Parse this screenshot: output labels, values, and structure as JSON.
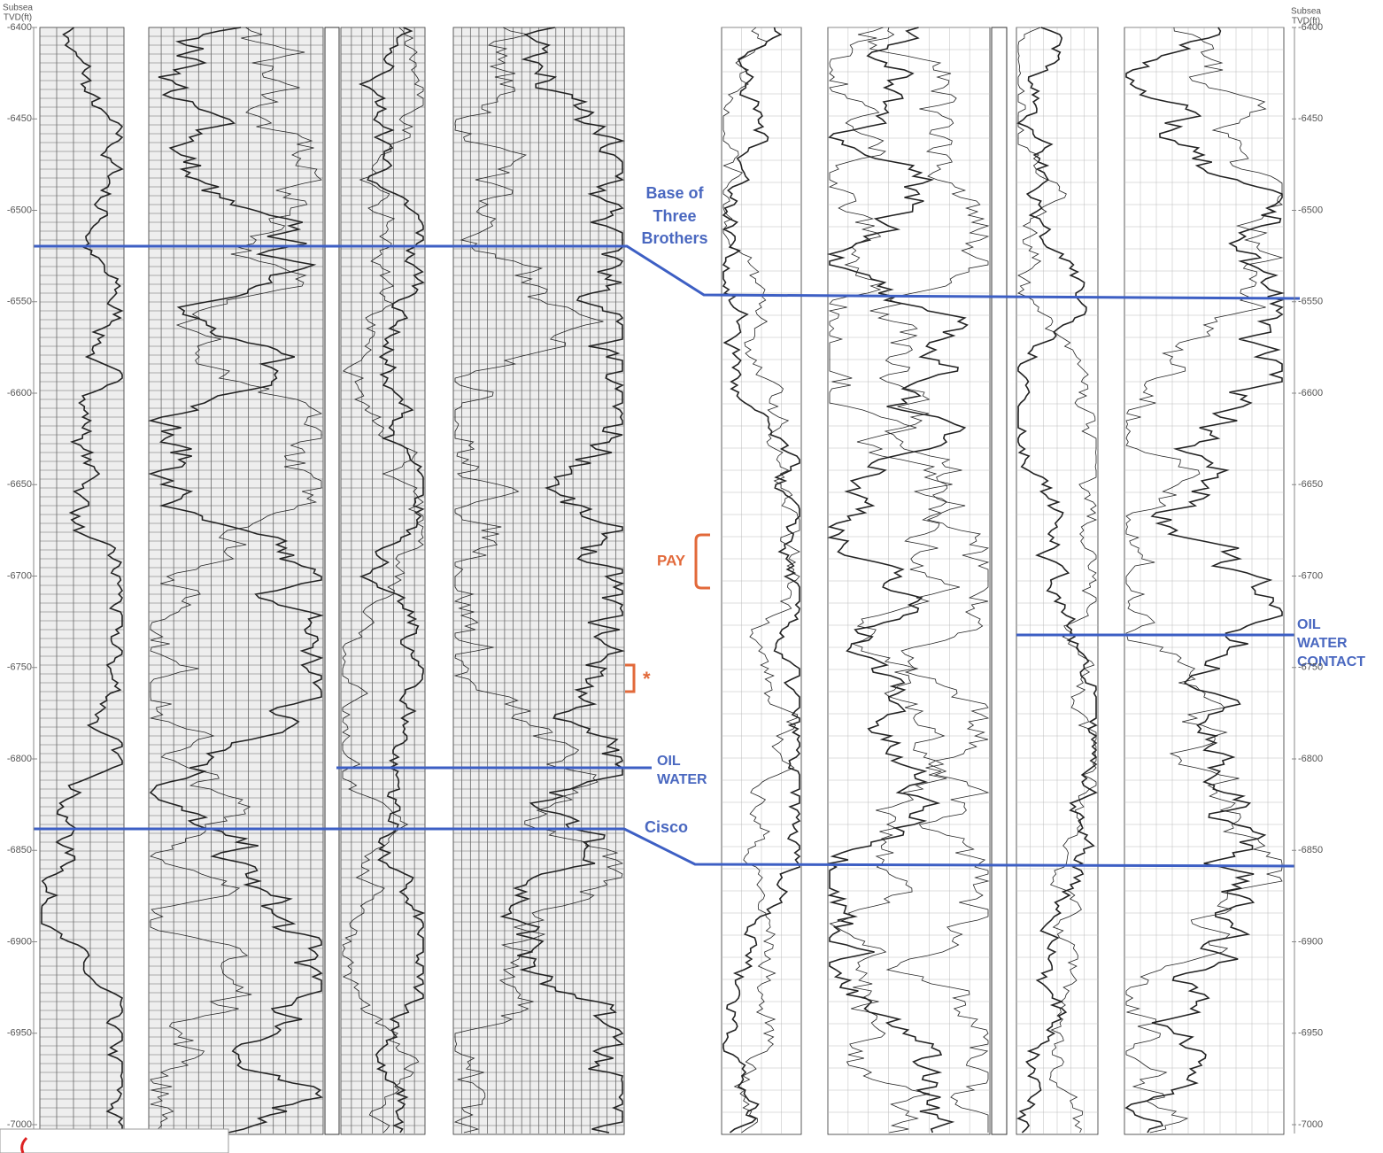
{
  "depth_axis": {
    "title": [
      "Subsea",
      "TVD(ft)"
    ],
    "range": [
      -6400,
      -7000
    ],
    "ticks": [
      -6400,
      -6450,
      -6500,
      -6550,
      -6600,
      -6650,
      -6700,
      -6750,
      -6800,
      -6850,
      -6900,
      -6950,
      -7000
    ]
  },
  "annotations": {
    "base_three_brothers": [
      "Base of",
      "Three",
      "Brothers"
    ],
    "oil_water": [
      "OIL",
      "WATER"
    ],
    "cisco": "Cisco",
    "pay": "PAY",
    "star": "*",
    "oil_water_contact": [
      "OIL",
      "WATER",
      "CONTACT"
    ]
  }
}
